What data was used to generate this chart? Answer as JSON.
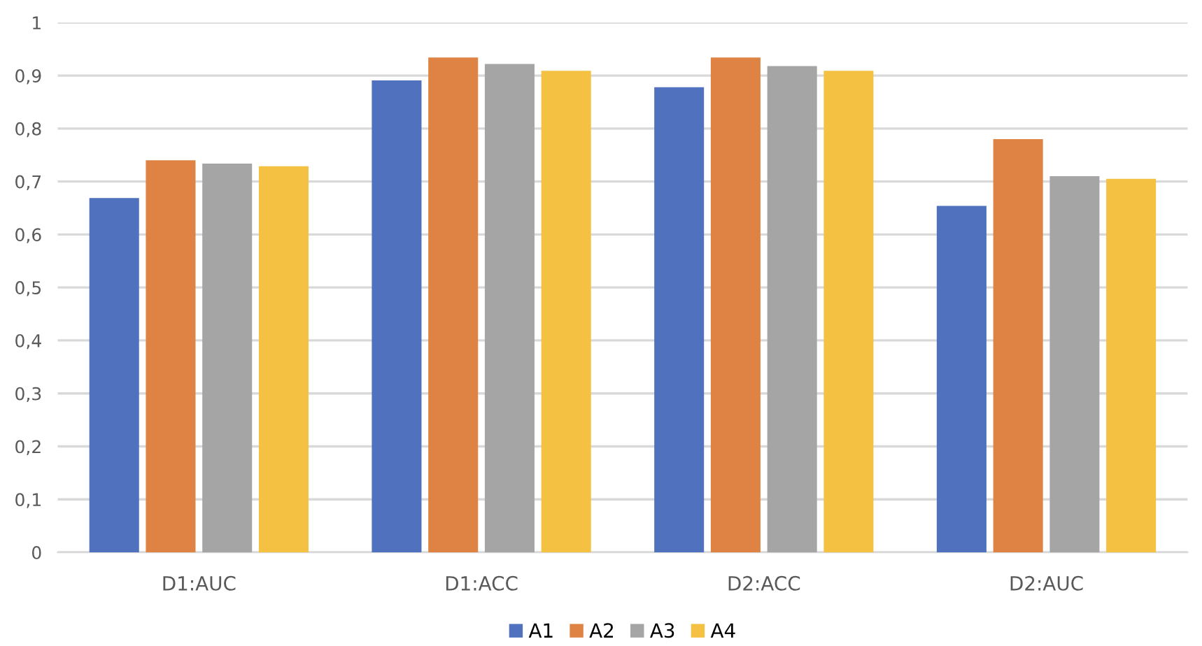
{
  "chart_data": {
    "type": "bar",
    "categories": [
      "D1:AUC",
      "D1:ACC",
      "D2:ACC",
      "D2:AUC"
    ],
    "series": [
      {
        "name": "A1",
        "color": "#4f71be",
        "values": [
          0.669,
          0.891,
          0.878,
          0.654
        ]
      },
      {
        "name": "A2",
        "color": "#de8344",
        "values": [
          0.74,
          0.934,
          0.934,
          0.78
        ]
      },
      {
        "name": "A3",
        "color": "#a5a5a5",
        "values": [
          0.734,
          0.922,
          0.918,
          0.71
        ]
      },
      {
        "name": "A4",
        "color": "#f4c142",
        "values": [
          0.729,
          0.909,
          0.909,
          0.705
        ]
      }
    ],
    "ylim": [
      0,
      1
    ],
    "yticks": [
      0,
      {
        "value": 0.1,
        "label": "0,1"
      },
      {
        "value": 0.2,
        "label": "0,2"
      },
      {
        "value": 0.3,
        "label": "0,3"
      },
      {
        "value": 0.4,
        "label": "0,4"
      },
      {
        "value": 0.5,
        "label": "0,5"
      },
      {
        "value": 0.6,
        "label": "0,6"
      },
      {
        "value": 0.7,
        "label": "0,7"
      },
      {
        "value": 0.8,
        "label": "0,8"
      },
      {
        "value": 0.9,
        "label": "0,9"
      },
      1
    ],
    "grid": "y",
    "legend": "bottom"
  }
}
